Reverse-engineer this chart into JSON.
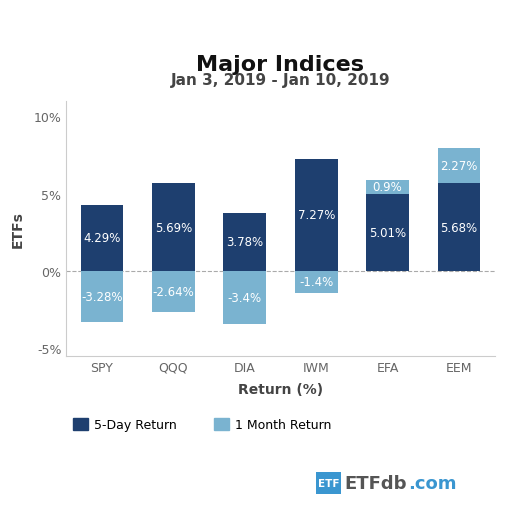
{
  "title": "Major Indices",
  "subtitle": "Jan 3, 2019 - Jan 10, 2019",
  "categories": [
    "SPY",
    "QQQ",
    "DIA",
    "IWM",
    "EFA",
    "EEM"
  ],
  "five_day_return": [
    4.29,
    5.69,
    3.78,
    7.27,
    5.01,
    5.68
  ],
  "one_month_return": [
    -3.28,
    -2.64,
    -3.4,
    -1.4,
    0.9,
    2.27
  ],
  "five_day_color": "#1e3f6f",
  "one_month_color": "#7ab3d0",
  "xlabel": "Return (%)",
  "ylabel": "ETFs",
  "ylim": [
    -5.5,
    11.0
  ],
  "yticks": [
    -5,
    0,
    5,
    10
  ],
  "background_color": "#ffffff",
  "legend_5day": "5-Day Return",
  "legend_1month": "1 Month Return",
  "title_fontsize": 16,
  "subtitle_fontsize": 11,
  "label_fontsize": 10,
  "tick_fontsize": 9,
  "bar_label_fontsize": 8.5
}
